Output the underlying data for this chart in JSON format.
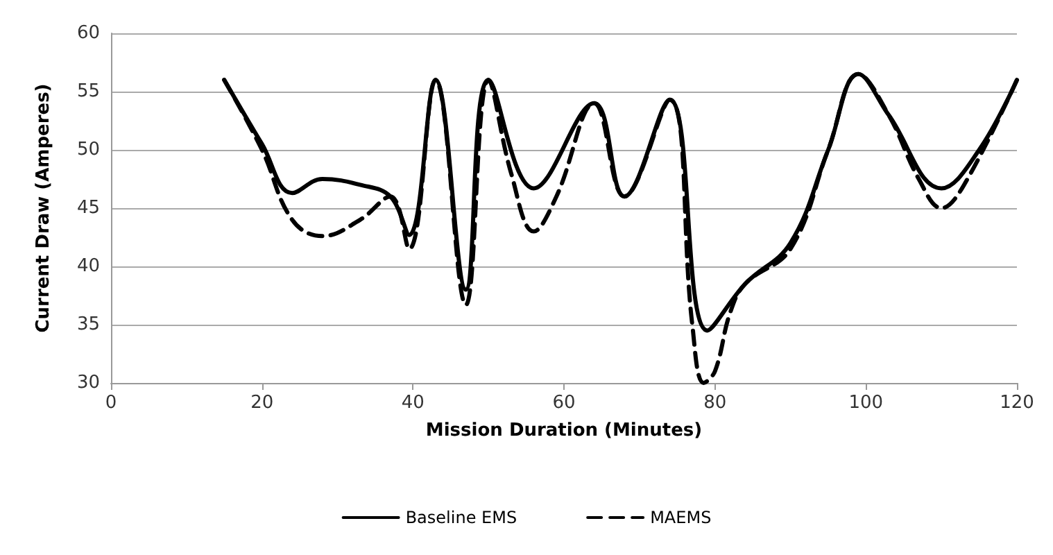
{
  "chart_data": {
    "type": "line",
    "xlabel": "Mission Duration (Minutes)",
    "ylabel": "Current Draw (Amperes)",
    "xlim": [
      0,
      120
    ],
    "xticks": [
      0,
      20,
      40,
      60,
      80,
      100,
      120
    ],
    "ylim": [
      30,
      60
    ],
    "yticks": [
      30,
      35,
      40,
      45,
      50,
      55,
      60
    ],
    "grid": "y",
    "legend": "bottom",
    "marker": "none",
    "series": [
      {
        "name": "Baseline EMS",
        "color": "#000000",
        "line_style": "solid",
        "x": [
          15,
          20,
          24,
          28,
          33,
          37,
          39.5,
          43,
          47,
          50,
          56,
          64,
          68,
          74,
          79,
          84,
          90,
          95,
          99,
          103,
          110,
          115,
          120
        ],
        "values": [
          56,
          50.5,
          46.3,
          47.5,
          47,
          46,
          42.7,
          56,
          38,
          56,
          46.7,
          54,
          46,
          54.3,
          34.5,
          38.5,
          42,
          50,
          56.5,
          53,
          46.7,
          50,
          56
        ]
      },
      {
        "name": "MAEMS",
        "color": "#000000",
        "line_style": "dashed",
        "x": [
          15,
          20,
          24,
          28,
          33,
          37,
          39.5,
          43,
          47,
          50,
          53,
          56,
          59,
          64,
          68,
          74,
          77,
          78.5,
          80,
          82,
          84,
          90,
          95,
          99,
          103,
          107,
          110,
          113,
          120
        ],
        "values": [
          56,
          50,
          44,
          42.6,
          44,
          46,
          41.5,
          56,
          36.7,
          56,
          48,
          43,
          46,
          54,
          46,
          54.3,
          35,
          30,
          31,
          36,
          38.5,
          41.5,
          50,
          56.5,
          53,
          47.5,
          45,
          47,
          56
        ]
      }
    ]
  }
}
